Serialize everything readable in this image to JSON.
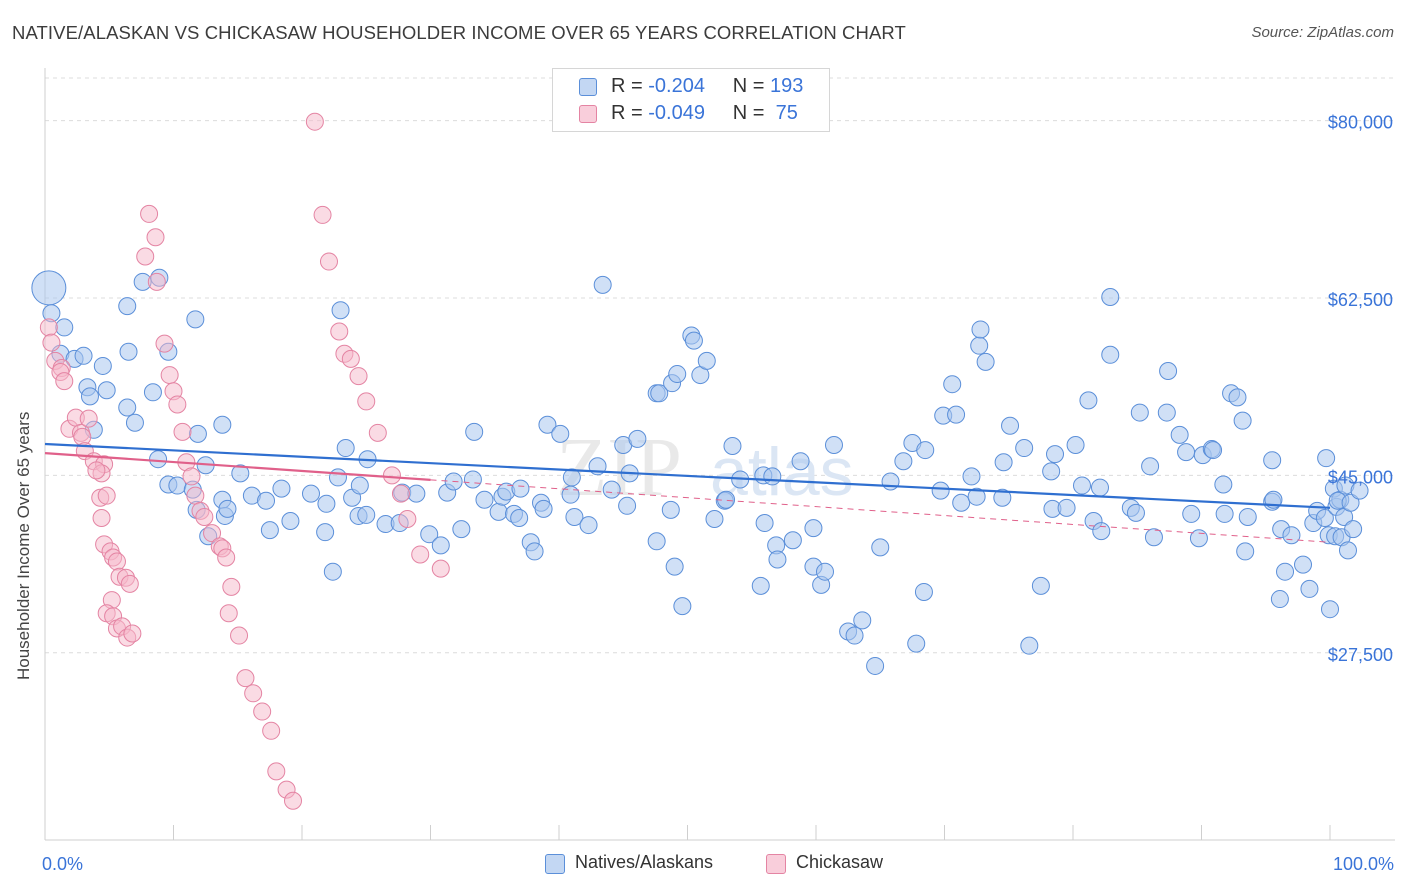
{
  "title": "NATIVE/ALASKAN VS CHICKASAW HOUSEHOLDER INCOME OVER 65 YEARS CORRELATION CHART",
  "source": "Source: ZipAtlas.com",
  "watermark": {
    "zip": "ZIP",
    "atlas": "atlas"
  },
  "legend": {
    "r_label": "R =",
    "n_label": "N =",
    "rows": [
      {
        "r": "-0.204",
        "n": "193"
      },
      {
        "r": "-0.049",
        "n": " 75"
      }
    ]
  },
  "colors": {
    "blue_fill": "#a9c6ef",
    "blue_stroke": "#5b8fd9",
    "blue_line": "#2f6fd0",
    "pink_fill": "#f6b8ca",
    "pink_stroke": "#e484a3",
    "pink_line": "#e0608a",
    "label_blue": "#3a74d8"
  },
  "chart_data": {
    "type": "scatter",
    "title": "NATIVE/ALASKAN VS CHICKASAW HOUSEHOLDER INCOME OVER 65 YEARS CORRELATION CHART",
    "xlabel": "",
    "ylabel": "Householder Income Over 65 years",
    "xlim": [
      0,
      100
    ],
    "ylim": [
      11000,
      85000
    ],
    "x_tick_labels": [
      "0.0%",
      "100.0%"
    ],
    "y_ticks": [
      27500,
      45000,
      62500,
      80000
    ],
    "y_tick_labels": [
      "$27,500",
      "$45,000",
      "$62,500",
      "$80,000"
    ],
    "grid": true,
    "legend_position": "bottom",
    "series": [
      {
        "name": "Natives/Alaskans",
        "trend": {
          "x": [
            0,
            100
          ],
          "y": [
            48100,
            41800
          ]
        },
        "points": [
          [
            0.3,
            63500
          ],
          [
            0.5,
            61000
          ],
          [
            1.5,
            59600
          ],
          [
            1.2,
            57000
          ],
          [
            2.3,
            56500
          ],
          [
            3.0,
            56800
          ],
          [
            3.3,
            53700
          ],
          [
            4.5,
            55800
          ],
          [
            3.5,
            52800
          ],
          [
            4.8,
            53400
          ],
          [
            3.8,
            49500
          ],
          [
            6.5,
            57200
          ],
          [
            6.4,
            51700
          ],
          [
            7.0,
            50200
          ],
          [
            8.4,
            53200
          ],
          [
            7.6,
            64100
          ],
          [
            8.9,
            64500
          ],
          [
            6.4,
            61700
          ],
          [
            11.7,
            60400
          ],
          [
            9.6,
            57200
          ],
          [
            11.9,
            49100
          ],
          [
            13.8,
            50000
          ],
          [
            8.8,
            46600
          ],
          [
            9.6,
            44100
          ],
          [
            10.3,
            44000
          ],
          [
            12.5,
            46000
          ],
          [
            13.8,
            42600
          ],
          [
            11.5,
            43600
          ],
          [
            11.8,
            41600
          ],
          [
            12.7,
            39000
          ],
          [
            14.0,
            41000
          ],
          [
            14.2,
            41700
          ],
          [
            15.2,
            45200
          ],
          [
            16.1,
            43000
          ],
          [
            17.2,
            42500
          ],
          [
            17.5,
            39600
          ],
          [
            18.4,
            43700
          ],
          [
            19.1,
            40500
          ],
          [
            20.7,
            43200
          ],
          [
            21.8,
            39400
          ],
          [
            22.8,
            44800
          ],
          [
            21.9,
            42200
          ],
          [
            22.4,
            35500
          ],
          [
            23.0,
            61300
          ],
          [
            23.4,
            47700
          ],
          [
            23.9,
            42800
          ],
          [
            24.4,
            41000
          ],
          [
            25.0,
            41100
          ],
          [
            24.5,
            44000
          ],
          [
            25.1,
            46600
          ],
          [
            26.5,
            40200
          ],
          [
            27.6,
            40300
          ],
          [
            27.8,
            43300
          ],
          [
            28.9,
            43200
          ],
          [
            29.9,
            39200
          ],
          [
            30.8,
            38100
          ],
          [
            31.3,
            43300
          ],
          [
            31.8,
            44400
          ],
          [
            32.4,
            39700
          ],
          [
            33.3,
            44600
          ],
          [
            33.4,
            49300
          ],
          [
            34.2,
            42600
          ],
          [
            35.3,
            41400
          ],
          [
            35.6,
            42900
          ],
          [
            35.9,
            43400
          ],
          [
            36.5,
            41200
          ],
          [
            36.9,
            40800
          ],
          [
            37.0,
            43700
          ],
          [
            37.8,
            38400
          ],
          [
            38.1,
            37500
          ],
          [
            38.6,
            42300
          ],
          [
            38.8,
            41700
          ],
          [
            39.1,
            50000
          ],
          [
            40.1,
            49100
          ],
          [
            40.9,
            43100
          ],
          [
            41.0,
            44800
          ],
          [
            41.2,
            40900
          ],
          [
            42.3,
            40100
          ],
          [
            43.0,
            45900
          ],
          [
            43.4,
            63800
          ],
          [
            44.1,
            43600
          ],
          [
            45.0,
            48000
          ],
          [
            45.3,
            42000
          ],
          [
            45.5,
            45200
          ],
          [
            46.1,
            48600
          ],
          [
            47.6,
            53100
          ],
          [
            47.8,
            53100
          ],
          [
            47.6,
            38500
          ],
          [
            48.8,
            54100
          ],
          [
            49.2,
            55000
          ],
          [
            48.7,
            41600
          ],
          [
            49.0,
            36000
          ],
          [
            49.6,
            32100
          ],
          [
            50.3,
            58800
          ],
          [
            50.5,
            58300
          ],
          [
            51.0,
            54900
          ],
          [
            51.5,
            56300
          ],
          [
            52.1,
            40700
          ],
          [
            52.9,
            42500
          ],
          [
            53.0,
            42600
          ],
          [
            53.5,
            47900
          ],
          [
            54.1,
            44600
          ],
          [
            55.7,
            34100
          ],
          [
            56.0,
            40300
          ],
          [
            55.9,
            45000
          ],
          [
            56.6,
            44900
          ],
          [
            56.9,
            38100
          ],
          [
            57.0,
            36700
          ],
          [
            58.2,
            38600
          ],
          [
            58.8,
            46400
          ],
          [
            59.8,
            39800
          ],
          [
            59.8,
            36000
          ],
          [
            60.4,
            34200
          ],
          [
            60.7,
            35500
          ],
          [
            61.4,
            48000
          ],
          [
            62.5,
            29600
          ],
          [
            63.0,
            29200
          ],
          [
            63.6,
            30700
          ],
          [
            64.6,
            26200
          ],
          [
            65.0,
            37900
          ],
          [
            65.8,
            44400
          ],
          [
            66.8,
            46400
          ],
          [
            67.5,
            48200
          ],
          [
            67.8,
            28400
          ],
          [
            68.4,
            33500
          ],
          [
            68.5,
            47500
          ],
          [
            69.7,
            43500
          ],
          [
            69.9,
            50900
          ],
          [
            70.6,
            54000
          ],
          [
            70.9,
            51000
          ],
          [
            71.3,
            42300
          ],
          [
            72.1,
            44900
          ],
          [
            72.5,
            42900
          ],
          [
            72.7,
            57800
          ],
          [
            72.8,
            59400
          ],
          [
            73.2,
            56200
          ],
          [
            74.5,
            42800
          ],
          [
            74.6,
            46300
          ],
          [
            75.1,
            49900
          ],
          [
            76.2,
            47700
          ],
          [
            76.6,
            28200
          ],
          [
            77.5,
            34100
          ],
          [
            78.3,
            45400
          ],
          [
            78.4,
            41700
          ],
          [
            78.6,
            47100
          ],
          [
            79.5,
            41800
          ],
          [
            80.2,
            48000
          ],
          [
            80.7,
            44000
          ],
          [
            81.2,
            52400
          ],
          [
            81.6,
            40500
          ],
          [
            82.1,
            43800
          ],
          [
            82.2,
            39500
          ],
          [
            82.9,
            62600
          ],
          [
            82.9,
            56900
          ],
          [
            84.5,
            41800
          ],
          [
            84.9,
            41300
          ],
          [
            85.2,
            51200
          ],
          [
            86.0,
            45900
          ],
          [
            86.3,
            38900
          ],
          [
            87.3,
            51200
          ],
          [
            87.4,
            55300
          ],
          [
            88.3,
            49000
          ],
          [
            88.8,
            47300
          ],
          [
            89.2,
            41200
          ],
          [
            89.8,
            38800
          ],
          [
            90.1,
            47000
          ],
          [
            90.8,
            47600
          ],
          [
            90.9,
            47500
          ],
          [
            91.7,
            44100
          ],
          [
            91.8,
            41200
          ],
          [
            92.3,
            53100
          ],
          [
            92.8,
            52700
          ],
          [
            93.2,
            50400
          ],
          [
            93.6,
            40900
          ],
          [
            93.4,
            37500
          ],
          [
            95.5,
            46500
          ],
          [
            95.5,
            42400
          ],
          [
            95.6,
            42600
          ],
          [
            96.5,
            35500
          ],
          [
            96.1,
            32800
          ],
          [
            96.2,
            39700
          ],
          [
            97.0,
            39100
          ],
          [
            97.9,
            36200
          ],
          [
            98.4,
            33800
          ],
          [
            98.7,
            40300
          ],
          [
            99.0,
            41500
          ],
          [
            99.6,
            40800
          ],
          [
            99.7,
            46700
          ],
          [
            99.9,
            39100
          ],
          [
            100.0,
            31800
          ],
          [
            100.4,
            39000
          ],
          [
            100.3,
            43700
          ],
          [
            100.5,
            41900
          ],
          [
            100.8,
            42600
          ],
          [
            100.6,
            42500
          ],
          [
            100.9,
            38900
          ],
          [
            101.2,
            44000
          ],
          [
            101.4,
            37600
          ],
          [
            101.1,
            40900
          ],
          [
            101.6,
            42300
          ],
          [
            101.8,
            39700
          ],
          [
            102.3,
            43500
          ]
        ]
      },
      {
        "name": "Chickasaw",
        "trend": {
          "x": [
            0,
            100
          ],
          "y": [
            47200,
            38400
          ]
        },
        "points": [
          [
            0.3,
            59600
          ],
          [
            0.5,
            58100
          ],
          [
            0.8,
            56300
          ],
          [
            1.3,
            55600
          ],
          [
            1.2,
            55200
          ],
          [
            1.5,
            54300
          ],
          [
            1.9,
            49600
          ],
          [
            2.4,
            50700
          ],
          [
            2.8,
            49200
          ],
          [
            2.9,
            48800
          ],
          [
            3.4,
            50600
          ],
          [
            3.1,
            47400
          ],
          [
            3.8,
            46400
          ],
          [
            4.6,
            46100
          ],
          [
            4.4,
            45200
          ],
          [
            4.0,
            45500
          ],
          [
            4.3,
            42800
          ],
          [
            4.8,
            43000
          ],
          [
            4.4,
            40800
          ],
          [
            4.6,
            38200
          ],
          [
            5.1,
            37500
          ],
          [
            5.3,
            36900
          ],
          [
            5.6,
            36500
          ],
          [
            5.8,
            35000
          ],
          [
            5.2,
            32700
          ],
          [
            4.8,
            31400
          ],
          [
            5.3,
            31100
          ],
          [
            5.6,
            29900
          ],
          [
            6.0,
            30100
          ],
          [
            6.3,
            34900
          ],
          [
            6.6,
            34300
          ],
          [
            6.4,
            29000
          ],
          [
            6.8,
            29400
          ],
          [
            7.8,
            66600
          ],
          [
            8.1,
            70800
          ],
          [
            8.6,
            68500
          ],
          [
            8.7,
            64100
          ],
          [
            9.3,
            58000
          ],
          [
            9.7,
            54900
          ],
          [
            10.0,
            53300
          ],
          [
            10.3,
            52000
          ],
          [
            10.7,
            49300
          ],
          [
            11.0,
            46300
          ],
          [
            11.4,
            44900
          ],
          [
            11.7,
            43000
          ],
          [
            12.1,
            41500
          ],
          [
            12.4,
            40900
          ],
          [
            13.0,
            39300
          ],
          [
            13.6,
            38000
          ],
          [
            13.8,
            37800
          ],
          [
            14.1,
            36900
          ],
          [
            14.5,
            34000
          ],
          [
            14.3,
            31400
          ],
          [
            15.1,
            29200
          ],
          [
            15.6,
            25000
          ],
          [
            16.2,
            23500
          ],
          [
            16.9,
            21700
          ],
          [
            17.6,
            19800
          ],
          [
            18.0,
            15800
          ],
          [
            18.8,
            14000
          ],
          [
            19.3,
            12900
          ],
          [
            21.0,
            79900
          ],
          [
            21.6,
            70700
          ],
          [
            22.1,
            66100
          ],
          [
            22.9,
            59200
          ],
          [
            23.3,
            57000
          ],
          [
            23.8,
            56500
          ],
          [
            24.4,
            54800
          ],
          [
            25.0,
            52300
          ],
          [
            25.9,
            49200
          ],
          [
            27.0,
            45000
          ],
          [
            27.7,
            43200
          ],
          [
            28.2,
            40700
          ],
          [
            29.2,
            37200
          ],
          [
            30.8,
            35800
          ]
        ]
      }
    ]
  },
  "bottom_legend": [
    "Natives/Alaskans",
    "Chickasaw"
  ]
}
